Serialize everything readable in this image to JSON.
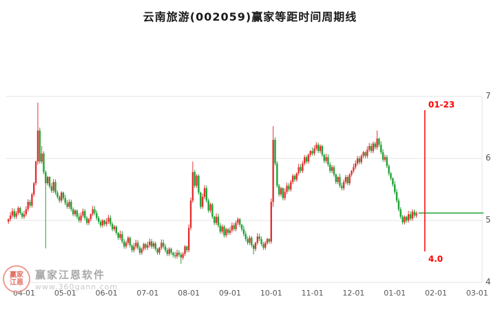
{
  "title": "云南旅游(002059)赢家等距时间周期线",
  "watermark": {
    "logo_line1": "赢家",
    "logo_line2": "江恩",
    "name": "赢家江恩软件",
    "url": "www.360gann.com"
  },
  "chart_data": {
    "type": "candlestick",
    "title": "云南旅游(002059)赢家等距时间周期线",
    "xlabel": "",
    "ylabel": "",
    "x_ticks": [
      "04-01",
      "05-01",
      "06-01",
      "07-01",
      "08-01",
      "09-01",
      "10-01",
      "11-01",
      "12-01",
      "01-01",
      "02-01",
      "03-01"
    ],
    "y_ticks": [
      7,
      6,
      5,
      4
    ],
    "ylim": [
      3.9,
      7.3
    ],
    "grid": true,
    "colors": {
      "up": "#e43030",
      "down": "#1fa236",
      "cycle": "#fe0000",
      "extension": "#1fa236",
      "grid": "#e4e4e4"
    },
    "days_per_month": 21,
    "lead_days": 8,
    "first_open": 4.98,
    "closes": [
      5.02,
      5.08,
      5.15,
      5.06,
      5.12,
      5.2,
      5.12,
      5.06,
      5.1,
      5.18,
      5.3,
      5.24,
      5.42,
      5.6,
      5.95,
      6.45,
      5.95,
      6.08,
      5.78,
      5.6,
      5.7,
      5.55,
      5.48,
      5.62,
      5.45,
      5.38,
      5.32,
      5.45,
      5.36,
      5.28,
      5.22,
      5.3,
      5.18,
      5.1,
      5.16,
      5.06,
      5.0,
      5.08,
      5.15,
      5.04,
      4.96,
      5.02,
      5.1,
      5.18,
      5.12,
      5.04,
      4.98,
      4.92,
      5.0,
      4.94,
      4.98,
      5.04,
      4.94,
      4.86,
      4.9,
      4.8,
      4.72,
      4.78,
      4.66,
      4.58,
      4.64,
      4.72,
      4.6,
      4.52,
      4.58,
      4.64,
      4.56,
      4.48,
      4.54,
      4.62,
      4.56,
      4.6,
      4.66,
      4.58,
      4.63,
      4.54,
      4.48,
      4.56,
      4.64,
      4.58,
      4.52,
      4.46,
      4.54,
      4.48,
      4.44,
      4.42,
      4.48,
      4.45,
      4.4,
      4.46,
      4.58,
      4.52,
      4.88,
      5.32,
      5.78,
      5.56,
      5.72,
      5.45,
      5.22,
      5.38,
      5.52,
      5.32,
      5.16,
      5.26,
      5.06,
      4.96,
      5.06,
      4.92,
      4.82,
      4.9,
      4.76,
      4.86,
      4.8,
      4.84,
      4.92,
      4.86,
      4.96,
      5.02,
      4.93,
      4.86,
      4.78,
      4.7,
      4.64,
      4.72,
      4.6,
      4.54,
      4.64,
      4.74,
      4.7,
      4.62,
      4.56,
      4.64,
      4.7,
      4.66,
      5.3,
      6.3,
      5.92,
      5.56,
      5.42,
      5.52,
      5.36,
      5.46,
      5.56,
      5.5,
      5.62,
      5.72,
      5.66,
      5.76,
      5.86,
      5.8,
      5.92,
      6.02,
      5.95,
      6.06,
      6.12,
      6.08,
      6.16,
      6.22,
      6.12,
      6.2,
      6.06,
      5.96,
      6.02,
      5.9,
      5.8,
      5.86,
      5.74,
      5.62,
      5.7,
      5.56,
      5.52,
      5.62,
      5.7,
      5.6,
      5.74,
      5.8,
      5.86,
      5.92,
      6.0,
      5.94,
      6.04,
      6.1,
      6.04,
      6.14,
      6.2,
      6.12,
      6.24,
      6.18,
      6.32,
      6.22,
      6.1,
      5.98,
      6.02,
      5.88,
      5.76,
      5.68,
      5.58,
      5.46,
      5.32,
      5.18,
      5.06,
      4.97,
      5.06,
      5.0,
      5.1,
      5.03,
      5.14,
      5.08,
      5.12
    ],
    "wick_overrides": {
      "15": {
        "high": 6.9,
        "low": 5.9
      },
      "17": {
        "high": 6.2
      },
      "19": {
        "low": 4.55
      },
      "88": {
        "low": 4.3
      },
      "94": {
        "high": 5.95
      },
      "125": {
        "low": 4.45
      },
      "135": {
        "high": 6.52,
        "low": 5.22
      },
      "188": {
        "high": 6.45
      }
    },
    "annotations": {
      "extension_price": 5.12,
      "cycle_line": {
        "label": "01-23",
        "bottom_label": "4.0",
        "month_index": 9,
        "frac": 0.73,
        "top_price": 6.78,
        "bottom_price": 4.5
      }
    }
  }
}
